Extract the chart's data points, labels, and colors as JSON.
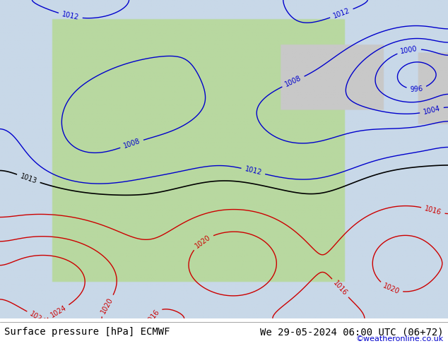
{
  "title_left": "Surface pressure [hPa] ECMWF",
  "title_right": "We 29-05-2024 06:00 UTC (06+72)",
  "credit": "©weatheronline.co.uk",
  "title_fontsize": 10,
  "credit_fontsize": 8,
  "bg_color": "#c8d8e8",
  "land_green_color": "#b8d8a0",
  "land_gray_color": "#c8c8c8",
  "contour_black_color": "#000000",
  "contour_red_color": "#cc0000",
  "contour_blue_color": "#0000cc",
  "label_fontsize": 7,
  "pressure_levels_black": [
    1013
  ],
  "pressure_levels_red": [
    1016,
    1020,
    1024
  ],
  "pressure_levels_blue": [
    996,
    1000,
    1004,
    1008,
    1012
  ]
}
